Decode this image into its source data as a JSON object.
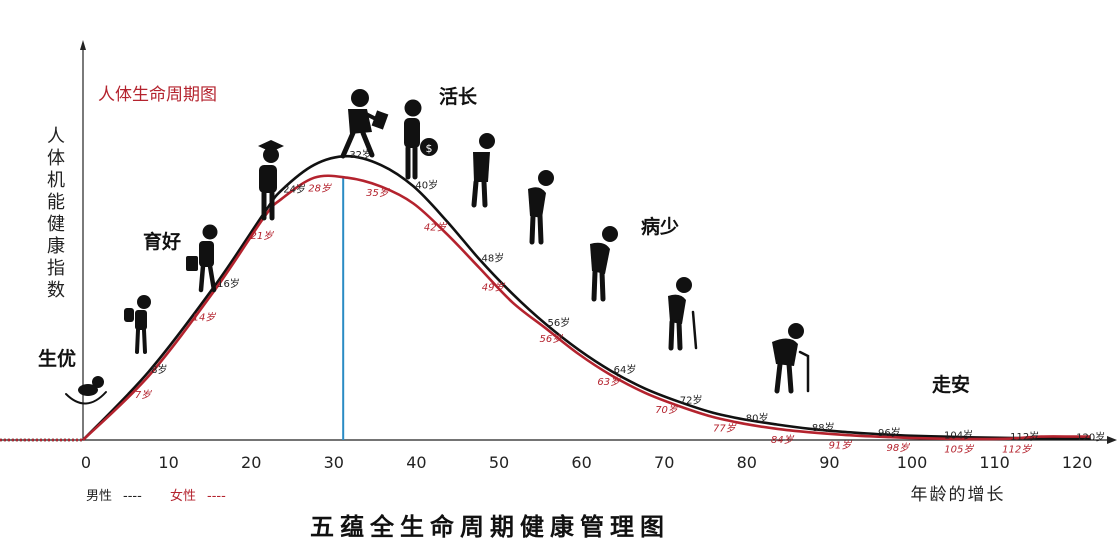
{
  "chart_data": {
    "type": "line",
    "title": "五蕴全生命周期健康管理图",
    "subtitle": "人体生命周期图",
    "xlabel": "年龄的增长",
    "ylabel": "人体机能健康指数",
    "xlim": [
      0,
      120
    ],
    "x_ticks": [
      "0",
      "10",
      "20",
      "30",
      "40",
      "50",
      "60",
      "70",
      "80",
      "90",
      "100",
      "110",
      "120"
    ],
    "grid": false,
    "legend": {
      "position": "bottom-left",
      "items": [
        {
          "label": "男性",
          "dash": "----",
          "color": "#222222"
        },
        {
          "label": "女性",
          "dash": "----",
          "color": "#b4232e"
        }
      ]
    },
    "series": [
      {
        "name": "男性",
        "color": "#111111",
        "x": [
          -12,
          0,
          8,
          16,
          22,
          24,
          28,
          32,
          36,
          40,
          44,
          48,
          52,
          56,
          60,
          64,
          68,
          72,
          76,
          80,
          84,
          88,
          92,
          96,
          100,
          104,
          108,
          112,
          116,
          120,
          122
        ],
        "y": [
          0,
          0,
          16,
          36,
          53,
          58,
          64,
          66,
          64,
          59,
          51,
          42,
          34,
          27,
          21,
          16,
          12,
          9,
          6.5,
          4.8,
          3.6,
          2.6,
          1.9,
          1.4,
          1,
          0.8,
          0.6,
          0.5,
          0.4,
          0.3,
          0.3
        ]
      },
      {
        "name": "女性",
        "color": "#b4232e",
        "x": [
          -12,
          0,
          8,
          16,
          22,
          24,
          28,
          32,
          36,
          40,
          44,
          48,
          52,
          56,
          60,
          64,
          68,
          72,
          76,
          80,
          84,
          88,
          92,
          96,
          100,
          104,
          108,
          112,
          116,
          120,
          122
        ],
        "y": [
          0,
          0,
          15,
          35,
          52,
          56,
          61,
          61,
          59,
          55,
          48,
          40,
          32,
          26,
          20,
          15,
          11,
          8,
          5.5,
          3.8,
          2.6,
          1.8,
          1.2,
          0.8,
          0.5,
          0.3,
          0.2,
          0.3,
          0.8,
          0.8,
          0.8
        ]
      }
    ],
    "peak_line_x": 31.5,
    "male_age_labels": [
      {
        "text": "8岁",
        "age": 8,
        "val": 16
      },
      {
        "text": "16岁",
        "age": 16,
        "val": 36
      },
      {
        "text": "24岁",
        "age": 24,
        "val": 58
      },
      {
        "text": "32岁",
        "age": 32,
        "val": 66
      },
      {
        "text": "40岁",
        "age": 40,
        "val": 59
      },
      {
        "text": "48岁",
        "age": 48,
        "val": 42
      },
      {
        "text": "56岁",
        "age": 56,
        "val": 27
      },
      {
        "text": "64岁",
        "age": 64,
        "val": 16
      },
      {
        "text": "72岁",
        "age": 72,
        "val": 9
      },
      {
        "text": "80岁",
        "age": 80,
        "val": 4.8
      },
      {
        "text": "88岁",
        "age": 88,
        "val": 2.6
      },
      {
        "text": "96岁",
        "age": 96,
        "val": 1.4
      },
      {
        "text": "104岁",
        "age": 104,
        "val": 0.8
      },
      {
        "text": "112岁",
        "age": 112,
        "val": 0.5
      },
      {
        "text": "120岁",
        "age": 120,
        "val": 0.3
      }
    ],
    "female_age_labels": [
      {
        "text": "7岁",
        "age": 7,
        "val": 13
      },
      {
        "text": "14岁",
        "age": 14,
        "val": 31
      },
      {
        "text": "21岁",
        "age": 21,
        "val": 50
      },
      {
        "text": "28岁",
        "age": 28,
        "val": 61
      },
      {
        "text": "35岁",
        "age": 35,
        "val": 60
      },
      {
        "text": "42岁",
        "age": 42,
        "val": 52
      },
      {
        "text": "49岁",
        "age": 49,
        "val": 38
      },
      {
        "text": "56岁",
        "age": 56,
        "val": 26
      },
      {
        "text": "63岁",
        "age": 63,
        "val": 16
      },
      {
        "text": "70岁",
        "age": 70,
        "val": 9.5
      },
      {
        "text": "77岁",
        "age": 77,
        "val": 5.2
      },
      {
        "text": "84岁",
        "age": 84,
        "val": 2.6
      },
      {
        "text": "91岁",
        "age": 91,
        "val": 1.3
      },
      {
        "text": "98岁",
        "age": 98,
        "val": 0.7
      },
      {
        "text": "105岁",
        "age": 105,
        "val": 0.3
      },
      {
        "text": "112岁",
        "age": 112,
        "val": 0.3
      }
    ],
    "stage_labels": [
      "生优",
      "育好",
      "活长",
      "病少",
      "走安"
    ],
    "icons": [
      "baby-icon",
      "child-with-backpack-icon",
      "student-with-bag-icon",
      "graduate-icon",
      "businessman-icon",
      "man-with-money-bag-icon",
      "walking-man-icon",
      "bent-man-icon",
      "stooped-man-icon",
      "elder-with-cane-icon",
      "old-man-with-cane-icon"
    ]
  }
}
